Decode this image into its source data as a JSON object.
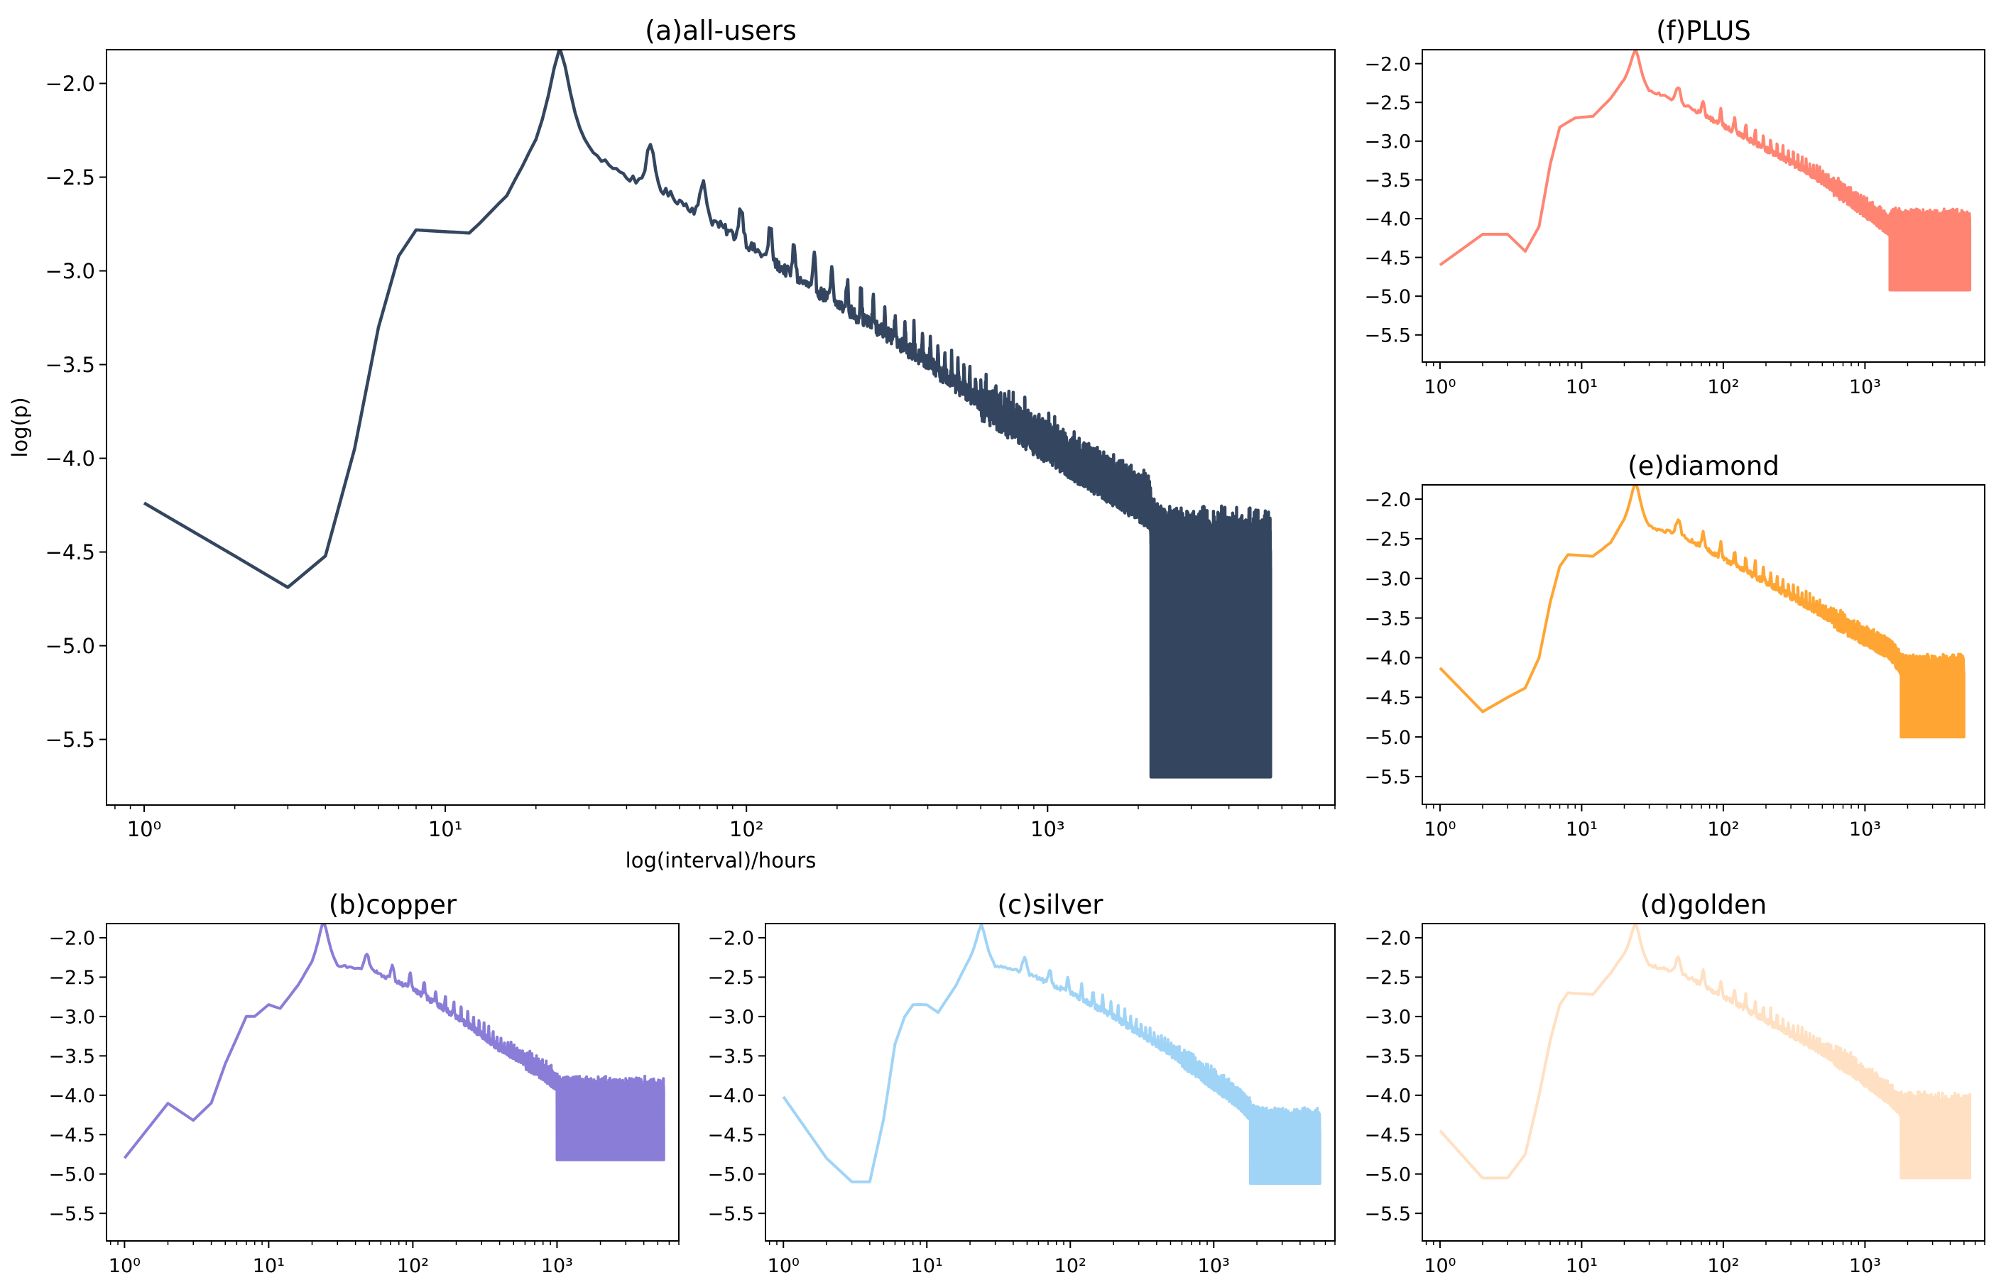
{
  "figure": {
    "xaxis_tick_labels": [
      "10^0",
      "10^1",
      "10^2",
      "10^3"
    ]
  },
  "chart_data": [
    {
      "id": "a",
      "type": "line",
      "title": "(a)all-users",
      "xlabel": "log(interval)/hours",
      "ylabel": "log(p)",
      "xscale": "log",
      "xlim": [
        0.75,
        9000
      ],
      "ylim": [
        -5.85,
        -1.82
      ],
      "yticks": [
        -2.0,
        -2.5,
        -3.0,
        -3.5,
        -4.0,
        -4.5,
        -5.0,
        -5.5
      ],
      "ytick_labels": [
        "−2.0",
        "−2.5",
        "−3.0",
        "−3.5",
        "−4.0",
        "−4.5",
        "−5.0",
        "−5.5"
      ],
      "xticks": [
        1,
        10,
        100,
        1000
      ],
      "color": "#34465f",
      "x_range": [
        1,
        5500
      ],
      "anchors": [
        [
          1,
          -4.24
        ],
        [
          2,
          -4.52
        ],
        [
          3,
          -4.69
        ],
        [
          4,
          -4.52
        ],
        [
          5,
          -3.95
        ],
        [
          6,
          -3.3
        ],
        [
          7,
          -2.92
        ],
        [
          8,
          -2.78
        ],
        [
          12,
          -2.8
        ],
        [
          16,
          -2.6
        ],
        [
          20,
          -2.3
        ],
        [
          24,
          -2.01
        ],
        [
          30,
          -2.35
        ],
        [
          40,
          -2.5
        ],
        [
          50,
          -2.55
        ],
        [
          80,
          -2.75
        ],
        [
          150,
          -3.05
        ],
        [
          300,
          -3.35
        ],
        [
          600,
          -3.7
        ],
        [
          1200,
          -4.0
        ],
        [
          2200,
          -4.25
        ],
        [
          2600,
          -4.5
        ],
        [
          3500,
          -4.6
        ],
        [
          4500,
          -4.8
        ],
        [
          5500,
          -4.9
        ]
      ],
      "band_series": {
        "x_range": [
          2200,
          5500
        ],
        "lower": -5.7,
        "upper_top": -4.4
      },
      "peaks": [
        [
          24,
          0.0
        ],
        [
          48,
          0.17
        ],
        [
          72,
          0.1
        ],
        [
          96,
          0.08
        ],
        [
          120,
          0.06
        ]
      ]
    },
    {
      "id": "f",
      "type": "line",
      "title": "(f)PLUS",
      "xscale": "log",
      "xlim": [
        0.75,
        7000
      ],
      "ylim": [
        -5.85,
        -1.82
      ],
      "yticks": [
        -2.0,
        -2.5,
        -3.0,
        -3.5,
        -4.0,
        -4.5,
        -5.0,
        -5.5
      ],
      "ytick_labels": [
        "−2.0",
        "−2.5",
        "−3.0",
        "−3.5",
        "−4.0",
        "−4.5",
        "−5.0",
        "−5.5"
      ],
      "xticks": [
        1,
        10,
        100,
        1000
      ],
      "color": "#ff8572",
      "x_range": [
        1,
        5500
      ],
      "anchors": [
        [
          1,
          -4.6
        ],
        [
          2,
          -4.2
        ],
        [
          3,
          -4.2
        ],
        [
          4,
          -4.42
        ],
        [
          5,
          -4.1
        ],
        [
          6,
          -3.3
        ],
        [
          7,
          -2.82
        ],
        [
          9,
          -2.7
        ],
        [
          12,
          -2.68
        ],
        [
          16,
          -2.45
        ],
        [
          20,
          -2.2
        ],
        [
          24,
          -2.01
        ],
        [
          30,
          -2.35
        ],
        [
          50,
          -2.5
        ],
        [
          100,
          -2.8
        ],
        [
          200,
          -3.1
        ],
        [
          400,
          -3.4
        ],
        [
          800,
          -3.75
        ],
        [
          1500,
          -4.1
        ],
        [
          2500,
          -4.45
        ],
        [
          4000,
          -4.7
        ],
        [
          5500,
          -4.9
        ]
      ],
      "band_series": {
        "x_range": [
          1500,
          5500
        ],
        "lower": -4.92,
        "upper_top": -4.0
      },
      "peaks": [
        [
          24,
          0.0
        ],
        [
          48,
          0.12
        ],
        [
          72,
          0.1
        ],
        [
          96,
          0.08
        ]
      ]
    },
    {
      "id": "e",
      "type": "line",
      "title": "(e)diamond",
      "xscale": "log",
      "xlim": [
        0.75,
        7000
      ],
      "ylim": [
        -5.85,
        -1.82
      ],
      "yticks": [
        -2.0,
        -2.5,
        -3.0,
        -3.5,
        -4.0,
        -4.5,
        -5.0,
        -5.5
      ],
      "ytick_labels": [
        "−2.0",
        "−2.5",
        "−3.0",
        "−3.5",
        "−4.0",
        "−4.5",
        "−5.0",
        "−5.5"
      ],
      "xticks": [
        1,
        10,
        100,
        1000
      ],
      "color": "#ffa533",
      "x_range": [
        1,
        5000
      ],
      "anchors": [
        [
          1,
          -4.13
        ],
        [
          2,
          -4.68
        ],
        [
          3,
          -4.5
        ],
        [
          4,
          -4.38
        ],
        [
          5,
          -4.0
        ],
        [
          6,
          -3.3
        ],
        [
          7,
          -2.85
        ],
        [
          8,
          -2.7
        ],
        [
          12,
          -2.72
        ],
        [
          16,
          -2.55
        ],
        [
          20,
          -2.25
        ],
        [
          24,
          -1.98
        ],
        [
          30,
          -2.35
        ],
        [
          50,
          -2.45
        ],
        [
          100,
          -2.75
        ],
        [
          200,
          -3.05
        ],
        [
          400,
          -3.35
        ],
        [
          800,
          -3.65
        ],
        [
          1500,
          -3.9
        ],
        [
          2000,
          -4.2
        ],
        [
          3000,
          -4.5
        ],
        [
          5000,
          -4.7
        ]
      ],
      "band_series": {
        "x_range": [
          1800,
          5000
        ],
        "lower": -5.0,
        "upper_top": -4.1
      },
      "peaks": [
        [
          24,
          0.0
        ],
        [
          48,
          0.15
        ],
        [
          72,
          0.12
        ],
        [
          96,
          0.1
        ]
      ]
    },
    {
      "id": "b",
      "type": "line",
      "title": "(b)copper",
      "xscale": "log",
      "xlim": [
        0.75,
        7000
      ],
      "ylim": [
        -5.85,
        -1.82
      ],
      "yticks": [
        -2.0,
        -2.5,
        -3.0,
        -3.5,
        -4.0,
        -4.5,
        -5.0,
        -5.5
      ],
      "ytick_labels": [
        "−2.0",
        "−2.5",
        "−3.0",
        "−3.5",
        "−4.0",
        "−4.5",
        "−5.0",
        "−5.5"
      ],
      "xticks": [
        1,
        10,
        100,
        1000
      ],
      "color": "#8a7dd8",
      "x_range": [
        1,
        5500
      ],
      "anchors": [
        [
          1,
          -4.8
        ],
        [
          2,
          -4.1
        ],
        [
          3,
          -4.32
        ],
        [
          4,
          -4.1
        ],
        [
          5,
          -3.6
        ],
        [
          7,
          -3.0
        ],
        [
          8,
          -3.0
        ],
        [
          10,
          -2.85
        ],
        [
          12,
          -2.9
        ],
        [
          16,
          -2.6
        ],
        [
          20,
          -2.3
        ],
        [
          24,
          -1.98
        ],
        [
          30,
          -2.35
        ],
        [
          50,
          -2.4
        ],
        [
          100,
          -2.65
        ],
        [
          200,
          -3.0
        ],
        [
          400,
          -3.4
        ],
        [
          800,
          -3.7
        ],
        [
          1500,
          -4.1
        ],
        [
          2500,
          -4.4
        ],
        [
          5500,
          -4.8
        ]
      ],
      "band_series": {
        "x_range": [
          1000,
          5500
        ],
        "lower": -4.82,
        "upper_top": -3.9
      },
      "peaks": [
        [
          24,
          0.0
        ],
        [
          48,
          0.15
        ],
        [
          72,
          0.12
        ],
        [
          96,
          0.1
        ]
      ]
    },
    {
      "id": "c",
      "type": "line",
      "title": "(c)silver",
      "xscale": "log",
      "xlim": [
        0.75,
        7000
      ],
      "ylim": [
        -5.85,
        -1.82
      ],
      "yticks": [
        -2.0,
        -2.5,
        -3.0,
        -3.5,
        -4.0,
        -4.5,
        -5.0,
        -5.5
      ],
      "ytick_labels": [
        "−2.0",
        "−2.5",
        "−3.0",
        "−3.5",
        "−4.0",
        "−4.5",
        "−5.0",
        "−5.5"
      ],
      "xticks": [
        1,
        10,
        100,
        1000
      ],
      "color": "#a0d4f7",
      "x_range": [
        1,
        5500
      ],
      "anchors": [
        [
          1,
          -4.02
        ],
        [
          2,
          -4.8
        ],
        [
          3,
          -5.1
        ],
        [
          4,
          -5.1
        ],
        [
          5,
          -4.3
        ],
        [
          6,
          -3.35
        ],
        [
          7,
          -3.0
        ],
        [
          8,
          -2.85
        ],
        [
          10,
          -2.85
        ],
        [
          12,
          -2.95
        ],
        [
          16,
          -2.6
        ],
        [
          20,
          -2.25
        ],
        [
          24,
          -2.03
        ],
        [
          30,
          -2.35
        ],
        [
          50,
          -2.45
        ],
        [
          100,
          -2.7
        ],
        [
          200,
          -3.0
        ],
        [
          400,
          -3.35
        ],
        [
          800,
          -3.7
        ],
        [
          1500,
          -4.05
        ],
        [
          2500,
          -4.45
        ],
        [
          5500,
          -4.9
        ]
      ],
      "band_series": {
        "x_range": [
          1800,
          5500
        ],
        "lower": -5.12,
        "upper_top": -4.3
      },
      "peaks": [
        [
          24,
          0.0
        ],
        [
          48,
          0.15
        ],
        [
          72,
          0.12
        ],
        [
          96,
          0.1
        ]
      ]
    },
    {
      "id": "d",
      "type": "line",
      "title": "(d)golden",
      "xscale": "log",
      "xlim": [
        0.75,
        7000
      ],
      "ylim": [
        -5.85,
        -1.82
      ],
      "yticks": [
        -2.0,
        -2.5,
        -3.0,
        -3.5,
        -4.0,
        -4.5,
        -5.0,
        -5.5
      ],
      "ytick_labels": [
        "−2.0",
        "−2.5",
        "−3.0",
        "−3.5",
        "−4.0",
        "−4.5",
        "−5.0",
        "−5.5"
      ],
      "xticks": [
        1,
        10,
        100,
        1000
      ],
      "color": "#ffe0c2",
      "x_range": [
        1,
        5500
      ],
      "anchors": [
        [
          1,
          -4.45
        ],
        [
          2,
          -5.05
        ],
        [
          3,
          -5.05
        ],
        [
          4,
          -4.75
        ],
        [
          5,
          -4.0
        ],
        [
          6,
          -3.3
        ],
        [
          7,
          -2.85
        ],
        [
          8,
          -2.7
        ],
        [
          12,
          -2.72
        ],
        [
          16,
          -2.45
        ],
        [
          20,
          -2.2
        ],
        [
          24,
          -2.01
        ],
        [
          30,
          -2.35
        ],
        [
          50,
          -2.45
        ],
        [
          100,
          -2.75
        ],
        [
          200,
          -3.05
        ],
        [
          400,
          -3.35
        ],
        [
          800,
          -3.65
        ],
        [
          1500,
          -4.0
        ],
        [
          2500,
          -4.4
        ],
        [
          5500,
          -5.0
        ]
      ],
      "band_series": {
        "x_range": [
          1800,
          5500
        ],
        "lower": -5.05,
        "upper_top": -4.1
      },
      "peaks": [
        [
          24,
          0.0
        ],
        [
          48,
          0.15
        ],
        [
          72,
          0.12
        ],
        [
          96,
          0.1
        ]
      ]
    }
  ]
}
